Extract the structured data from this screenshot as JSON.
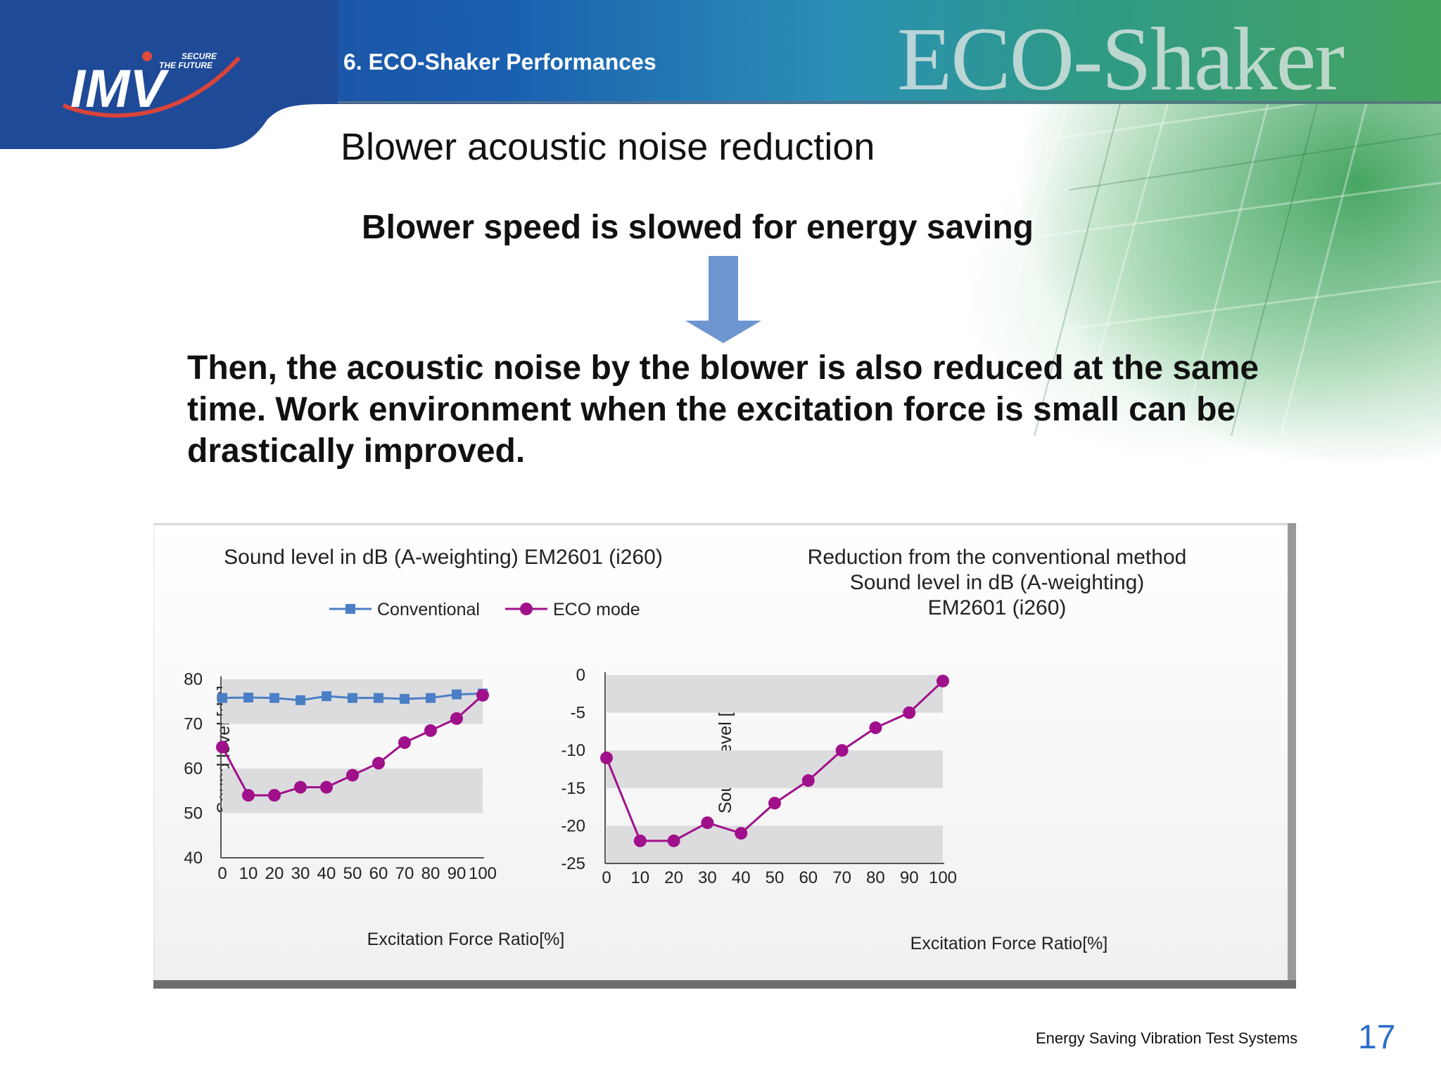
{
  "header": {
    "section_title": "6. ECO-Shaker Performances",
    "brand_watermark": "ECO-Shaker",
    "logo_text": "IMV",
    "logo_tagline_1": "SECURE",
    "logo_tagline_2": "THE FUTURE"
  },
  "slide": {
    "title": "Blower acoustic noise reduction",
    "subtitle": "Blower speed is slowed for energy saving",
    "body": "Then, the acoustic noise by the blower is also reduced at the same time. Work environment when the excitation force is small can be drastically improved."
  },
  "footer": {
    "text": "Energy Saving Vibration Test Systems",
    "page": "17"
  },
  "colors": {
    "header_blue": "#1d4596",
    "conventional": "#4a7fc6",
    "eco_mode": "#a0108a",
    "arrow": "#6d96d0",
    "page_number": "#2d6ec9"
  },
  "chart_data": [
    {
      "type": "line",
      "title": "Sound level in dB (A-weighting) EM2601 (i260)",
      "xlabel": "Excitation Force Ratio[%]",
      "ylabel": "Sound level [dB]",
      "x": [
        0,
        10,
        20,
        30,
        40,
        50,
        60,
        70,
        80,
        90,
        100
      ],
      "xlim": [
        0,
        100
      ],
      "ylim": [
        40,
        80
      ],
      "yticks": [
        40,
        50,
        60,
        70,
        80
      ],
      "legend": "top-right",
      "series": [
        {
          "name": "Conventional",
          "marker": "square",
          "color": "#4a7fc6",
          "values": [
            75.8,
            75.9,
            75.8,
            75.3,
            76.2,
            75.8,
            75.8,
            75.6,
            75.8,
            76.6,
            76.8
          ]
        },
        {
          "name": "ECO mode",
          "marker": "circle",
          "color": "#a0108a",
          "values": [
            64.8,
            54.0,
            54.0,
            55.8,
            55.8,
            58.5,
            61.2,
            65.8,
            68.5,
            71.2,
            76.4
          ]
        }
      ]
    },
    {
      "type": "line",
      "title": [
        "Reduction from the conventional method",
        "Sound level in dB (A-weighting)",
        "EM2601 (i260)"
      ],
      "xlabel": "Excitation Force Ratio[%]",
      "ylabel": "Sound level [dB]",
      "x": [
        0,
        10,
        20,
        30,
        40,
        50,
        60,
        70,
        80,
        90,
        100
      ],
      "xlim": [
        0,
        100
      ],
      "ylim": [
        -25,
        0
      ],
      "yticks": [
        0,
        -5,
        -10,
        -15,
        -20,
        -25
      ],
      "series": [
        {
          "marker": "circle",
          "color": "#a0108a",
          "values": [
            -11.0,
            -22.0,
            -22.0,
            -19.6,
            -21.0,
            -17.0,
            -14.0,
            -10.0,
            -7.0,
            -5.0,
            -0.8
          ]
        }
      ]
    }
  ]
}
